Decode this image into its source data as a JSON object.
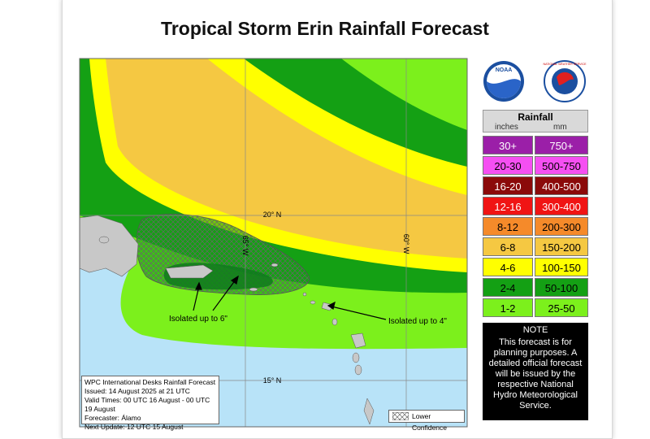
{
  "title": "Tropical Storm Erin Rainfall Forecast",
  "logos": {
    "noaa": "NOAA",
    "nws": "NATIONAL WEATHER SERVICE"
  },
  "map": {
    "grid_labels": {
      "lat_20": "20° N",
      "lat_15": "15° N",
      "lon_65": "65° W",
      "lon_60": "60° W"
    },
    "annotations": [
      "Isolated up to 6\"",
      "Isolated up to 4\""
    ],
    "info_box": [
      "WPC International Desks Rainfall Forecast",
      "Issued: 14 August 2025 at 21 UTC",
      "Valid Times: 00 UTC  16 August - 00 UTC 19 August",
      "Forecaster: Álamo",
      "Next Update: 12 UTC 15 August"
    ],
    "lower_confidence": "Lower Confidence"
  },
  "legend": {
    "title": "Rainfall",
    "units": [
      "inches",
      "mm"
    ],
    "rows": [
      {
        "inches": "30+",
        "mm": "750+",
        "color": "#9b1fa8",
        "text_color": "#ffffff"
      },
      {
        "inches": "20-30",
        "mm": "500-750",
        "color": "#f54ff2",
        "text_color": "#000000"
      },
      {
        "inches": "16-20",
        "mm": "400-500",
        "color": "#8b0a0a",
        "text_color": "#ffffff"
      },
      {
        "inches": "12-16",
        "mm": "300-400",
        "color": "#f01414",
        "text_color": "#ffffff"
      },
      {
        "inches": "8-12",
        "mm": "200-300",
        "color": "#f58a2a",
        "text_color": "#000000"
      },
      {
        "inches": "6-8",
        "mm": "150-200",
        "color": "#f5c842",
        "text_color": "#000000"
      },
      {
        "inches": "4-6",
        "mm": "100-150",
        "color": "#ffff00",
        "text_color": "#000000"
      },
      {
        "inches": "2-4",
        "mm": "50-100",
        "color": "#14a014",
        "text_color": "#000000"
      },
      {
        "inches": "1-2",
        "mm": "25-50",
        "color": "#7cf01c",
        "text_color": "#000000"
      }
    ]
  },
  "note": {
    "title": "NOTE",
    "text": "This forecast is for planning purposes. A detailed official forecast will be issued by the respective National Hydro Meteorological Service."
  }
}
